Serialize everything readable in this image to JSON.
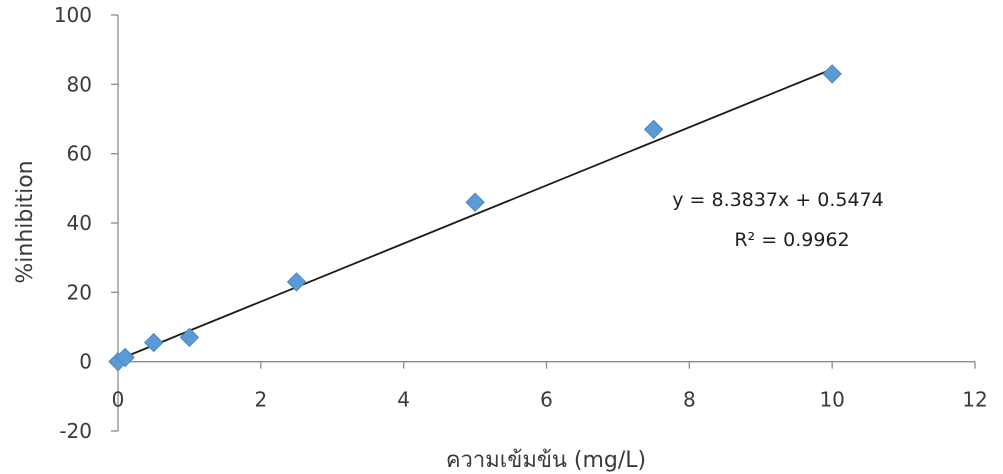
{
  "chart_data": {
    "type": "scatter",
    "xlabel": "ความเข้มข้น (mg/L)",
    "ylabel": "%inhibition",
    "xlim": [
      0,
      12
    ],
    "ylim": [
      -20,
      100
    ],
    "x_ticks": [
      0,
      2,
      4,
      6,
      8,
      10,
      12
    ],
    "y_ticks": [
      -20,
      0,
      20,
      40,
      60,
      80,
      100
    ],
    "x_tick_labels": [
      "0",
      "2",
      "4",
      "6",
      "8",
      "10",
      "12"
    ],
    "y_tick_labels": [
      "-20",
      "0",
      "20",
      "40",
      "60",
      "80",
      "100"
    ],
    "grid": false,
    "legend": "none",
    "series": [
      {
        "marker": "diamond",
        "color": "#5b9bd5",
        "points": [
          {
            "x": 0,
            "y": 0
          },
          {
            "x": 0.1,
            "y": 1.2
          },
          {
            "x": 0.5,
            "y": 5.5
          },
          {
            "x": 1,
            "y": 7
          },
          {
            "x": 2.5,
            "y": 23
          },
          {
            "x": 5,
            "y": 46
          },
          {
            "x": 7.5,
            "y": 67
          },
          {
            "x": 10,
            "y": 83
          }
        ]
      }
    ],
    "trendline": {
      "slope": 8.3837,
      "intercept": 0.5474,
      "x_range": [
        0,
        10
      ],
      "color": "#1a1a1a"
    },
    "annotations": {
      "equation": "y = 8.3837x + 0.5474",
      "r_squared": "R² = 0.9962"
    }
  }
}
